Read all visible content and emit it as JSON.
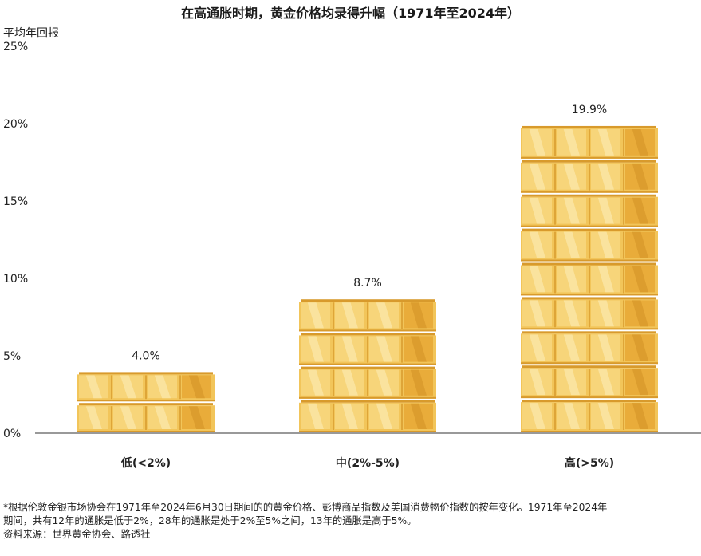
{
  "chart_data": {
    "type": "bar",
    "title": "在高通胀时期，黄金价格均录得升幅（1971年至2024年）",
    "ylabel": "平均年回报",
    "xlabel": "",
    "categories": [
      "低(<2%)",
      "中(2%-5%)",
      "高(>5%)"
    ],
    "values": [
      4.0,
      8.7,
      19.9
    ],
    "value_labels": [
      "4.0%",
      "8.7%",
      "19.9%"
    ],
    "ylim": [
      0,
      25
    ],
    "yticks": [
      0,
      5,
      10,
      15,
      20,
      25
    ],
    "ytick_labels": [
      "0%",
      "5%",
      "10%",
      "15%",
      "20%",
      "25%"
    ],
    "grid": false,
    "legend": "none",
    "bar_style": "stacked gold bars",
    "colors": {
      "gold_light": "#f7d57a",
      "gold_mid": "#f2c55a",
      "gold_dark": "#e9ac3a",
      "gold_edge": "#d89a2c",
      "axis": "#999999"
    }
  },
  "footnote": {
    "line1": "*根据伦敦金银市场协会在1971年至2024年6月30日期间的的黄金价格、彭博商品指数及美国消费物价指数的按年变化。1971年至2024年",
    "line2": "期间，共有12年的通胀是低于2%，28年的通胀是处于2%至5%之间，13年的通胀是高于5%。",
    "source": "资料来源：世界黄金协会、路透社"
  }
}
